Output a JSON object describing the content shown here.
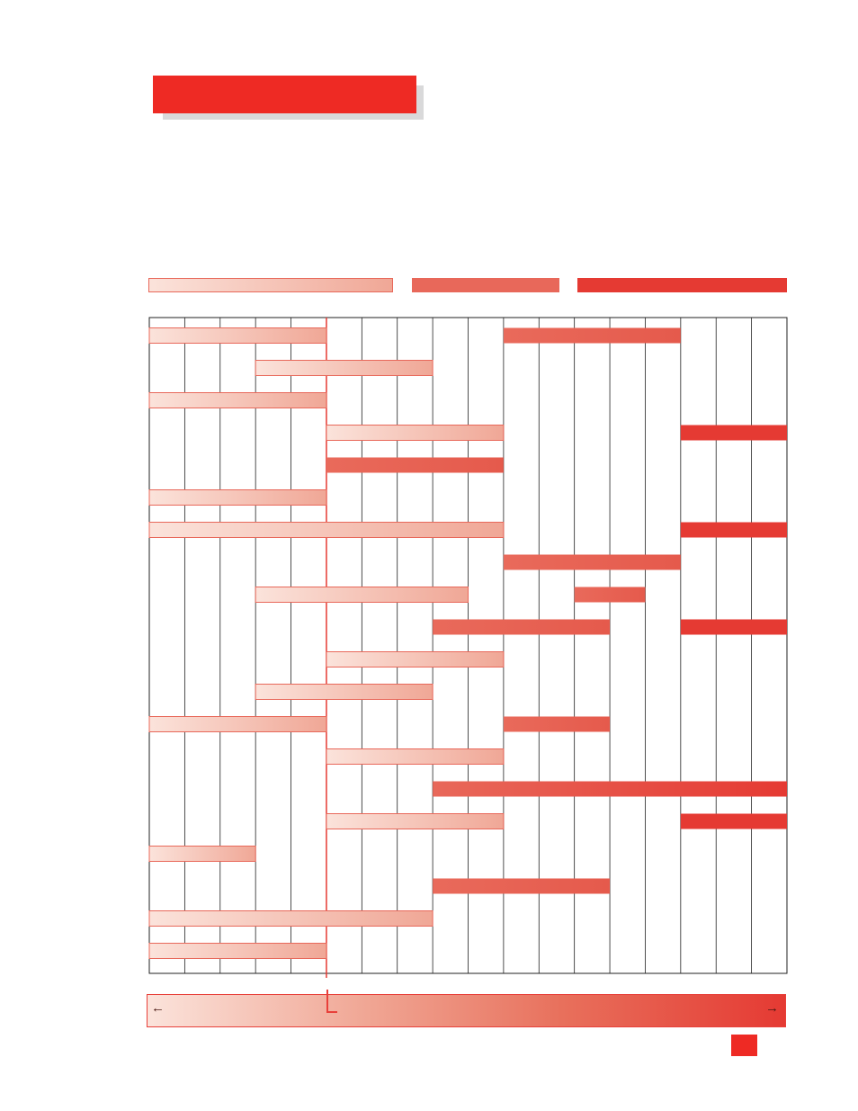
{
  "colors": {
    "accent": "#ee2a24",
    "light_start": "#fbe3db",
    "light_end": "#f0a796",
    "medium": "#e8685a",
    "dark": "#e53a33",
    "grid": "#222222"
  },
  "legend": [
    {
      "style": "light-gradient"
    },
    {
      "style": "medium"
    },
    {
      "style": "dark"
    }
  ],
  "axis": {
    "left_arrow": "←",
    "right_arrow": "→"
  },
  "chart_data": {
    "type": "bar",
    "orientation": "horizontal-range",
    "columns": 18,
    "marker_column": 5,
    "rows": [
      [
        {
          "s": 0,
          "e": 5,
          "style": "light"
        },
        {
          "s": 10,
          "e": 15,
          "style": "medium"
        }
      ],
      [
        {
          "s": 3,
          "e": 8,
          "style": "light"
        }
      ],
      [
        {
          "s": 0,
          "e": 5,
          "style": "light"
        }
      ],
      [
        {
          "s": 5,
          "e": 10,
          "style": "light"
        },
        {
          "s": 15,
          "e": 18,
          "style": "dark"
        }
      ],
      [
        {
          "s": 5,
          "e": 10,
          "style": "medium"
        }
      ],
      [
        {
          "s": 0,
          "e": 5,
          "style": "light"
        }
      ],
      [
        {
          "s": 0,
          "e": 10,
          "style": "light"
        },
        {
          "s": 15,
          "e": 18,
          "style": "dark"
        }
      ],
      [
        {
          "s": 10,
          "e": 15,
          "style": "medium"
        }
      ],
      [
        {
          "s": 3,
          "e": 9,
          "style": "light"
        },
        {
          "s": 12,
          "e": 14,
          "style": "medium"
        }
      ],
      [
        {
          "s": 8,
          "e": 13,
          "style": "medium"
        },
        {
          "s": 15,
          "e": 18,
          "style": "dark"
        }
      ],
      [
        {
          "s": 5,
          "e": 10,
          "style": "light"
        }
      ],
      [
        {
          "s": 3,
          "e": 8,
          "style": "light"
        }
      ],
      [
        {
          "s": 0,
          "e": 5,
          "style": "light"
        },
        {
          "s": 10,
          "e": 13,
          "style": "medium"
        }
      ],
      [
        {
          "s": 5,
          "e": 10,
          "style": "light"
        }
      ],
      [
        {
          "s": 8,
          "e": 18,
          "style": "medium-dark"
        }
      ],
      [
        {
          "s": 5,
          "e": 10,
          "style": "light"
        },
        {
          "s": 15,
          "e": 18,
          "style": "dark"
        }
      ],
      [
        {
          "s": 0,
          "e": 3,
          "style": "light"
        }
      ],
      [
        {
          "s": 8,
          "e": 13,
          "style": "medium"
        }
      ],
      [
        {
          "s": 0,
          "e": 8,
          "style": "light"
        }
      ],
      [
        {
          "s": 0,
          "e": 5,
          "style": "light"
        }
      ]
    ]
  }
}
